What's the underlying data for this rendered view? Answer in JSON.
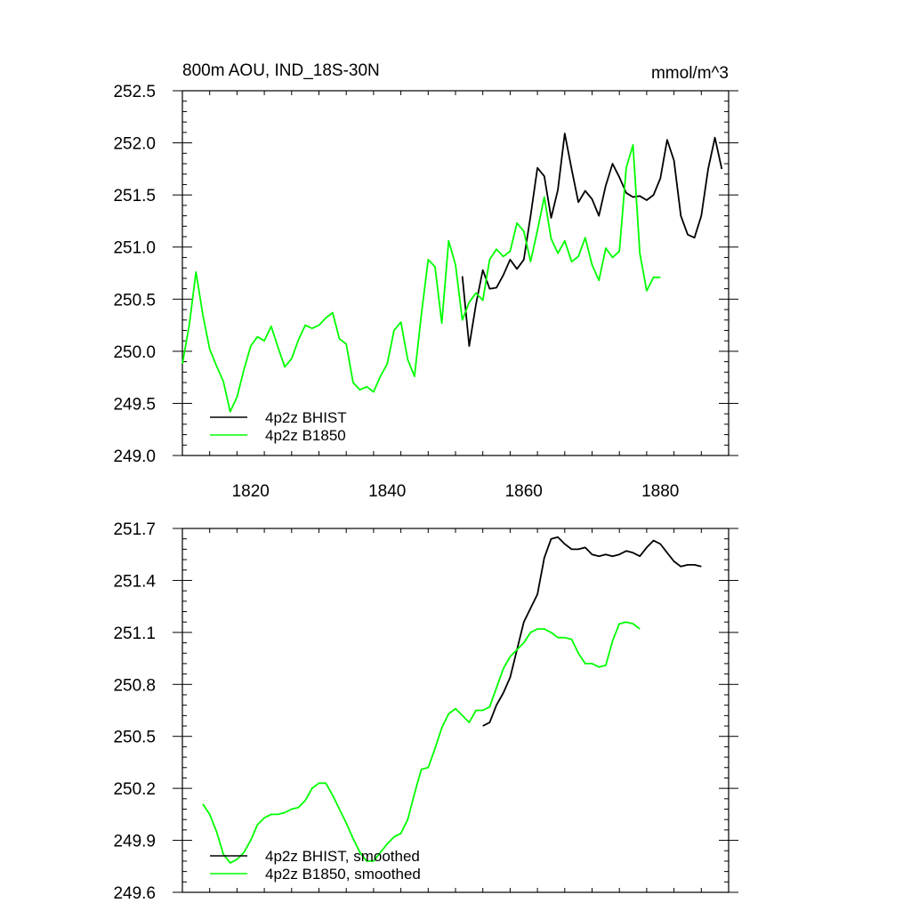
{
  "chart_data": [
    {
      "type": "line",
      "title": "800m AOU, IND_18S-30N",
      "units": "mmol/m^3",
      "xlim": [
        1810,
        1890
      ],
      "ylim": [
        249.0,
        252.5
      ],
      "xticks": [
        "1820",
        "1840",
        "1860",
        "1880"
      ],
      "yticks": [
        "249.0",
        "249.5",
        "250.0",
        "250.5",
        "251.0",
        "251.5",
        "252.0",
        "252.5"
      ],
      "legend_position": "bottom-left",
      "series": [
        {
          "name": "4p2z BHIST",
          "color": "#000000",
          "x": [
            1851,
            1852,
            1853,
            1854,
            1855,
            1856,
            1857,
            1858,
            1859,
            1860,
            1861,
            1862,
            1863,
            1864,
            1865,
            1866,
            1867,
            1868,
            1869,
            1870,
            1871,
            1872,
            1873,
            1874,
            1875,
            1876,
            1877,
            1878,
            1879,
            1880,
            1881,
            1882,
            1883,
            1884,
            1885,
            1886,
            1887,
            1888,
            1889
          ],
          "y": [
            250.72,
            250.05,
            250.45,
            250.78,
            250.6,
            250.61,
            250.73,
            250.88,
            250.79,
            250.88,
            251.3,
            251.76,
            251.68,
            251.28,
            251.55,
            252.09,
            251.75,
            251.43,
            251.54,
            251.46,
            251.3,
            251.59,
            251.8,
            251.67,
            251.52,
            251.48,
            251.49,
            251.45,
            251.5,
            251.66,
            252.03,
            251.83,
            251.3,
            251.12,
            251.09,
            251.3,
            251.75,
            252.05,
            251.75
          ]
        },
        {
          "name": "4p2z B1850",
          "color": "#00ff00",
          "x": [
            1810,
            1811,
            1812,
            1813,
            1814,
            1815,
            1816,
            1817,
            1818,
            1819,
            1820,
            1821,
            1822,
            1823,
            1824,
            1825,
            1826,
            1827,
            1828,
            1829,
            1830,
            1831,
            1832,
            1833,
            1834,
            1835,
            1836,
            1837,
            1838,
            1839,
            1840,
            1841,
            1842,
            1843,
            1844,
            1845,
            1846,
            1847,
            1848,
            1849,
            1850,
            1851,
            1852,
            1853,
            1854,
            1855,
            1856,
            1857,
            1858,
            1859,
            1860,
            1861,
            1862,
            1863,
            1864,
            1865,
            1866,
            1867,
            1868,
            1869,
            1870,
            1871,
            1872,
            1873,
            1874,
            1875,
            1876,
            1877,
            1878,
            1879,
            1880
          ],
          "y": [
            249.88,
            250.25,
            250.76,
            250.35,
            250.02,
            249.86,
            249.71,
            249.42,
            249.56,
            249.82,
            250.05,
            250.14,
            250.1,
            250.24,
            250.04,
            249.85,
            249.93,
            250.11,
            250.25,
            250.22,
            250.25,
            250.32,
            250.37,
            250.12,
            250.07,
            249.7,
            249.63,
            249.66,
            249.61,
            249.76,
            249.88,
            250.2,
            250.28,
            249.92,
            249.76,
            250.35,
            250.88,
            250.81,
            250.27,
            251.06,
            250.83,
            250.3,
            250.47,
            250.56,
            250.49,
            250.88,
            250.98,
            250.91,
            250.96,
            251.23,
            251.15,
            250.86,
            251.16,
            251.48,
            251.08,
            250.94,
            251.06,
            250.86,
            250.91,
            251.09,
            250.83,
            250.68,
            250.99,
            250.9,
            250.96,
            251.76,
            251.98,
            250.94,
            250.58,
            250.71,
            250.71
          ]
        }
      ]
    },
    {
      "type": "line",
      "xlim": [
        1810,
        1890
      ],
      "ylim": [
        249.6,
        251.7
      ],
      "yticks": [
        "249.6",
        "249.9",
        "250.2",
        "250.5",
        "250.8",
        "251.1",
        "251.4",
        "251.7"
      ],
      "legend_position": "bottom-left",
      "series": [
        {
          "name": "4p2z BHIST, smoothed",
          "color": "#000000",
          "x": [
            1854,
            1855,
            1856,
            1857,
            1858,
            1859,
            1860,
            1861,
            1862,
            1863,
            1864,
            1865,
            1866,
            1867,
            1868,
            1869,
            1870,
            1871,
            1872,
            1873,
            1874,
            1875,
            1876,
            1877,
            1878,
            1879,
            1880,
            1881,
            1882,
            1883,
            1884,
            1885,
            1886
          ],
          "y": [
            250.56,
            250.58,
            250.68,
            250.75,
            250.84,
            251.0,
            251.16,
            251.24,
            251.32,
            251.53,
            251.64,
            251.65,
            251.61,
            251.58,
            251.58,
            251.59,
            251.55,
            251.54,
            251.55,
            251.54,
            251.55,
            251.57,
            251.56,
            251.54,
            251.59,
            251.63,
            251.61,
            251.56,
            251.51,
            251.48,
            251.49,
            251.49,
            251.48
          ]
        },
        {
          "name": "4p2z B1850, smoothed",
          "color": "#00ff00",
          "x": [
            1813,
            1814,
            1815,
            1816,
            1817,
            1818,
            1819,
            1820,
            1821,
            1822,
            1823,
            1824,
            1825,
            1826,
            1827,
            1828,
            1829,
            1830,
            1831,
            1832,
            1833,
            1834,
            1835,
            1836,
            1837,
            1838,
            1839,
            1840,
            1841,
            1842,
            1843,
            1844,
            1845,
            1846,
            1847,
            1848,
            1849,
            1850,
            1851,
            1852,
            1853,
            1854,
            1855,
            1856,
            1857,
            1858,
            1859,
            1860,
            1861,
            1862,
            1863,
            1864,
            1865,
            1866,
            1867,
            1868,
            1869,
            1870,
            1871,
            1872,
            1873,
            1874,
            1875,
            1876,
            1877
          ],
          "y": [
            250.11,
            250.05,
            249.95,
            249.82,
            249.77,
            249.79,
            249.83,
            249.9,
            249.99,
            250.03,
            250.05,
            250.05,
            250.06,
            250.08,
            250.09,
            250.13,
            250.2,
            250.23,
            250.23,
            250.16,
            250.08,
            250.0,
            249.91,
            249.83,
            249.78,
            249.78,
            249.83,
            249.88,
            249.92,
            249.94,
            250.02,
            250.17,
            250.31,
            250.32,
            250.43,
            250.55,
            250.63,
            250.66,
            250.62,
            250.58,
            250.65,
            250.65,
            250.67,
            250.78,
            250.89,
            250.96,
            251.0,
            251.04,
            251.1,
            251.12,
            251.12,
            251.1,
            251.07,
            251.07,
            251.06,
            250.98,
            250.92,
            250.92,
            250.9,
            250.91,
            251.05,
            251.15,
            251.16,
            251.15,
            251.12
          ]
        }
      ]
    }
  ]
}
